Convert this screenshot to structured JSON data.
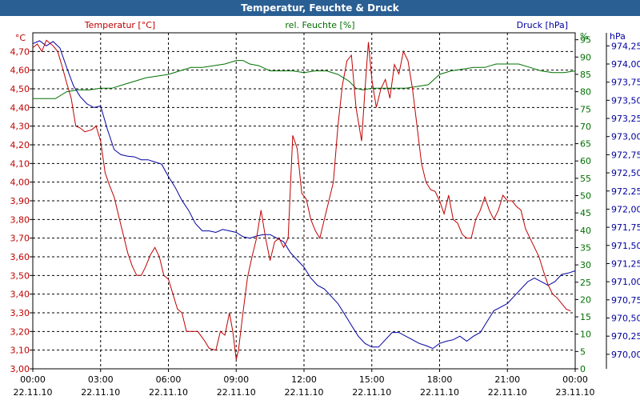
{
  "chart_data": {
    "type": "line",
    "title": "Temperatur, Feuchte & Druck",
    "series": [
      {
        "name": "Temperatur [°C]",
        "unit": "°C",
        "color": "#c00000",
        "axis": "left",
        "ylim": [
          3.0,
          4.8
        ],
        "ticks": [
          "3,00",
          "3,10",
          "3,20",
          "3,30",
          "3,40",
          "3,50",
          "3,60",
          "3,70",
          "3,80",
          "3,90",
          "4,00",
          "4,10",
          "4,20",
          "4,30",
          "4,40",
          "4,50",
          "4,60",
          "4,70"
        ],
        "points": [
          [
            0,
            4.72
          ],
          [
            0.2,
            4.74
          ],
          [
            0.4,
            4.7
          ],
          [
            0.6,
            4.76
          ],
          [
            0.9,
            4.73
          ],
          [
            1.1,
            4.7
          ],
          [
            1.3,
            4.62
          ],
          [
            1.5,
            4.53
          ],
          [
            1.7,
            4.45
          ],
          [
            1.9,
            4.3
          ],
          [
            2.1,
            4.29
          ],
          [
            2.3,
            4.27
          ],
          [
            2.6,
            4.28
          ],
          [
            2.8,
            4.3
          ],
          [
            3.0,
            4.22
          ],
          [
            3.2,
            4.05
          ],
          [
            3.4,
            3.98
          ],
          [
            3.6,
            3.92
          ],
          [
            3.8,
            3.82
          ],
          [
            4.0,
            3.72
          ],
          [
            4.2,
            3.62
          ],
          [
            4.4,
            3.55
          ],
          [
            4.6,
            3.5
          ],
          [
            4.8,
            3.5
          ],
          [
            5.0,
            3.55
          ],
          [
            5.2,
            3.61
          ],
          [
            5.4,
            3.65
          ],
          [
            5.6,
            3.6
          ],
          [
            5.8,
            3.5
          ],
          [
            6.0,
            3.48
          ],
          [
            6.2,
            3.4
          ],
          [
            6.4,
            3.32
          ],
          [
            6.6,
            3.3
          ],
          [
            6.8,
            3.2
          ],
          [
            7.0,
            3.2
          ],
          [
            7.3,
            3.2
          ],
          [
            7.6,
            3.15
          ],
          [
            7.8,
            3.11
          ],
          [
            8.1,
            3.1
          ],
          [
            8.3,
            3.2
          ],
          [
            8.5,
            3.18
          ],
          [
            8.7,
            3.3
          ],
          [
            8.85,
            3.2
          ],
          [
            9.0,
            3.05
          ],
          [
            9.1,
            3.1
          ],
          [
            9.3,
            3.3
          ],
          [
            9.5,
            3.49
          ],
          [
            9.7,
            3.6
          ],
          [
            9.9,
            3.7
          ],
          [
            10.1,
            3.85
          ],
          [
            10.3,
            3.7
          ],
          [
            10.5,
            3.58
          ],
          [
            10.7,
            3.68
          ],
          [
            10.9,
            3.7
          ],
          [
            11.1,
            3.65
          ],
          [
            11.3,
            3.7
          ],
          [
            11.5,
            4.25
          ],
          [
            11.7,
            4.18
          ],
          [
            11.9,
            3.94
          ],
          [
            12.1,
            3.91
          ],
          [
            12.3,
            3.8
          ],
          [
            12.5,
            3.74
          ],
          [
            12.7,
            3.7
          ],
          [
            12.9,
            3.8
          ],
          [
            13.1,
            3.9
          ],
          [
            13.3,
            4.0
          ],
          [
            13.5,
            4.3
          ],
          [
            13.7,
            4.52
          ],
          [
            13.9,
            4.65
          ],
          [
            14.1,
            4.68
          ],
          [
            14.3,
            4.4
          ],
          [
            14.55,
            4.22
          ],
          [
            14.7,
            4.5
          ],
          [
            14.85,
            4.75
          ],
          [
            15.0,
            4.55
          ],
          [
            15.2,
            4.4
          ],
          [
            15.4,
            4.5
          ],
          [
            15.6,
            4.55
          ],
          [
            15.8,
            4.45
          ],
          [
            16.0,
            4.63
          ],
          [
            16.2,
            4.58
          ],
          [
            16.4,
            4.7
          ],
          [
            16.6,
            4.65
          ],
          [
            16.8,
            4.5
          ],
          [
            17.0,
            4.3
          ],
          [
            17.2,
            4.1
          ],
          [
            17.4,
            4.0
          ],
          [
            17.6,
            3.96
          ],
          [
            17.8,
            3.95
          ],
          [
            18.0,
            3.9
          ],
          [
            18.2,
            3.83
          ],
          [
            18.4,
            3.93
          ],
          [
            18.6,
            3.8
          ],
          [
            18.8,
            3.78
          ],
          [
            19.0,
            3.72
          ],
          [
            19.2,
            3.7
          ],
          [
            19.4,
            3.7
          ],
          [
            19.6,
            3.8
          ],
          [
            19.8,
            3.85
          ],
          [
            20.0,
            3.92
          ],
          [
            20.2,
            3.85
          ],
          [
            20.4,
            3.8
          ],
          [
            20.6,
            3.85
          ],
          [
            20.8,
            3.93
          ],
          [
            21.0,
            3.9
          ],
          [
            21.2,
            3.9
          ],
          [
            21.4,
            3.87
          ],
          [
            21.6,
            3.85
          ],
          [
            21.8,
            3.75
          ],
          [
            22.0,
            3.7
          ],
          [
            22.2,
            3.65
          ],
          [
            22.4,
            3.6
          ],
          [
            22.6,
            3.52
          ],
          [
            22.8,
            3.45
          ],
          [
            23.0,
            3.4
          ],
          [
            23.2,
            3.38
          ],
          [
            23.4,
            3.35
          ],
          [
            23.6,
            3.32
          ],
          [
            23.8,
            3.31
          ]
        ]
      },
      {
        "name": "rel. Feuchte [%]",
        "unit": "%",
        "color": "#007000",
        "axis": "right-inner",
        "ylim": [
          0,
          97
        ],
        "ticks": [
          "0",
          "5",
          "10",
          "15",
          "20",
          "25",
          "30",
          "35",
          "40",
          "45",
          "50",
          "55",
          "60",
          "65",
          "70",
          "75",
          "80",
          "85",
          "90",
          "95"
        ],
        "points": [
          [
            0,
            78
          ],
          [
            1,
            78
          ],
          [
            1.5,
            80
          ],
          [
            2,
            80.5
          ],
          [
            2.5,
            80.5
          ],
          [
            3,
            81
          ],
          [
            3.5,
            81
          ],
          [
            4,
            82
          ],
          [
            4.5,
            83
          ],
          [
            5,
            84
          ],
          [
            5.5,
            84.5
          ],
          [
            6,
            85
          ],
          [
            6.5,
            86
          ],
          [
            7,
            87
          ],
          [
            7.5,
            87
          ],
          [
            8,
            87.5
          ],
          [
            8.5,
            88
          ],
          [
            9,
            89
          ],
          [
            9.3,
            89
          ],
          [
            9.6,
            88
          ],
          [
            10,
            87.5
          ],
          [
            10.5,
            86
          ],
          [
            11,
            86
          ],
          [
            11.5,
            86
          ],
          [
            12,
            85.5
          ],
          [
            12.5,
            86
          ],
          [
            13,
            86
          ],
          [
            13.5,
            85
          ],
          [
            14,
            83
          ],
          [
            14.3,
            81
          ],
          [
            14.6,
            80.5
          ],
          [
            15,
            81
          ],
          [
            15.5,
            81
          ],
          [
            16,
            81
          ],
          [
            16.5,
            81
          ],
          [
            17,
            81.5
          ],
          [
            17.5,
            82
          ],
          [
            18,
            85
          ],
          [
            18.5,
            86
          ],
          [
            19,
            86.5
          ],
          [
            19.5,
            87
          ],
          [
            20,
            87
          ],
          [
            20.5,
            88
          ],
          [
            21,
            88
          ],
          [
            21.5,
            88
          ],
          [
            22,
            87
          ],
          [
            22.5,
            86
          ],
          [
            23,
            85.5
          ],
          [
            23.5,
            85.5
          ],
          [
            24,
            86
          ]
        ]
      },
      {
        "name": "Druck [hPa]",
        "unit": "hPa",
        "color": "#0000a0",
        "axis": "right-outer",
        "ylim": [
          969.8,
          974.43
        ],
        "ticks": [
          "970,00",
          "970,25",
          "970,50",
          "970,75",
          "971,00",
          "971,25",
          "971,50",
          "971,75",
          "972,00",
          "972,25",
          "972,50",
          "972,75",
          "973,00",
          "973,25",
          "973,50",
          "973,75",
          "974,00",
          "974,25"
        ],
        "points": [
          [
            0,
            974.28
          ],
          [
            0.3,
            974.32
          ],
          [
            0.6,
            974.25
          ],
          [
            0.9,
            974.31
          ],
          [
            1.2,
            974.22
          ],
          [
            1.5,
            973.95
          ],
          [
            1.8,
            973.7
          ],
          [
            2.1,
            973.55
          ],
          [
            2.4,
            973.45
          ],
          [
            2.7,
            973.4
          ],
          [
            3.0,
            973.42
          ],
          [
            3.3,
            973.1
          ],
          [
            3.6,
            972.82
          ],
          [
            3.9,
            972.75
          ],
          [
            4.2,
            972.73
          ],
          [
            4.5,
            972.72
          ],
          [
            4.8,
            972.68
          ],
          [
            5.1,
            972.68
          ],
          [
            5.4,
            972.65
          ],
          [
            5.7,
            972.62
          ],
          [
            6.0,
            972.45
          ],
          [
            6.3,
            972.3
          ],
          [
            6.6,
            972.12
          ],
          [
            6.9,
            971.98
          ],
          [
            7.2,
            971.8
          ],
          [
            7.5,
            971.7
          ],
          [
            7.8,
            971.7
          ],
          [
            8.1,
            971.68
          ],
          [
            8.4,
            971.72
          ],
          [
            8.7,
            971.7
          ],
          [
            9.0,
            971.68
          ],
          [
            9.3,
            971.62
          ],
          [
            9.6,
            971.6
          ],
          [
            9.9,
            971.63
          ],
          [
            10.2,
            971.65
          ],
          [
            10.5,
            971.65
          ],
          [
            10.8,
            971.6
          ],
          [
            11.1,
            971.55
          ],
          [
            11.4,
            971.4
          ],
          [
            11.7,
            971.3
          ],
          [
            12.0,
            971.2
          ],
          [
            12.3,
            971.05
          ],
          [
            12.6,
            970.95
          ],
          [
            12.9,
            970.9
          ],
          [
            13.2,
            970.8
          ],
          [
            13.5,
            970.7
          ],
          [
            13.8,
            970.55
          ],
          [
            14.1,
            970.4
          ],
          [
            14.4,
            970.25
          ],
          [
            14.7,
            970.15
          ],
          [
            15.0,
            970.1
          ],
          [
            15.3,
            970.1
          ],
          [
            15.6,
            970.2
          ],
          [
            15.9,
            970.3
          ],
          [
            16.2,
            970.3
          ],
          [
            16.5,
            970.25
          ],
          [
            16.8,
            970.2
          ],
          [
            17.1,
            970.15
          ],
          [
            17.4,
            970.12
          ],
          [
            17.7,
            970.08
          ],
          [
            18.0,
            970.15
          ],
          [
            18.3,
            970.18
          ],
          [
            18.6,
            970.2
          ],
          [
            18.9,
            970.25
          ],
          [
            19.2,
            970.18
          ],
          [
            19.5,
            970.25
          ],
          [
            19.8,
            970.3
          ],
          [
            20.1,
            970.45
          ],
          [
            20.4,
            970.6
          ],
          [
            20.7,
            970.65
          ],
          [
            21.0,
            970.7
          ],
          [
            21.3,
            970.8
          ],
          [
            21.6,
            970.9
          ],
          [
            21.9,
            971.0
          ],
          [
            22.2,
            971.05
          ],
          [
            22.5,
            971.0
          ],
          [
            22.8,
            970.95
          ],
          [
            23.1,
            971.0
          ],
          [
            23.4,
            971.1
          ],
          [
            23.7,
            971.12
          ],
          [
            24.0,
            971.15
          ]
        ]
      }
    ],
    "x": {
      "ticks": [
        "00:00",
        "03:00",
        "06:00",
        "09:00",
        "12:00",
        "15:00",
        "18:00",
        "21:00",
        "00:00"
      ],
      "dates": [
        "22.11.10",
        "22.11.10",
        "22.11.10",
        "22.11.10",
        "22.11.10",
        "22.11.10",
        "22.11.10",
        "22.11.10",
        "23.11.10"
      ],
      "range": [
        0,
        24
      ],
      "unit": "hours"
    },
    "grid": true,
    "legend": "top"
  }
}
